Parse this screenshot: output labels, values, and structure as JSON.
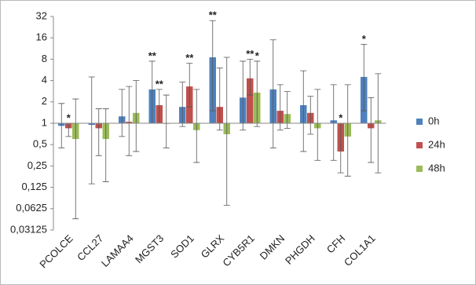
{
  "chart_data": {
    "type": "bar",
    "log_scale": true,
    "base_value": 1,
    "categories": [
      "PCOLCE",
      "CCL27",
      "LAMAA4",
      "MGST3",
      "SOD1",
      "GLRX",
      "CYB5R1",
      "DMKN",
      "PHGDH",
      "CFH",
      "COL1A1"
    ],
    "series": [
      {
        "name": "0h",
        "color": "#4f81bd",
        "values": [
          0.92,
          0.95,
          1.25,
          3,
          1.7,
          8.5,
          2.3,
          3,
          1.8,
          1.1,
          4.5
        ],
        "error_high": [
          1.9,
          4.5,
          3,
          7.5,
          3.8,
          28,
          7.5,
          15,
          5.5,
          3.5,
          13
        ],
        "error_low": [
          0.45,
          0.14,
          0.65,
          1,
          0.9,
          1.5,
          0.8,
          0.45,
          0.4,
          0.3,
          1.5
        ]
      },
      {
        "name": "24h",
        "color": "#c0504d",
        "values": [
          0.85,
          0.85,
          1.05,
          1.8,
          3.3,
          1.7,
          4.3,
          1.5,
          1.4,
          0.4,
          0.85
        ],
        "error_high": [
          1,
          1.6,
          3.3,
          3,
          7,
          6,
          8,
          3.5,
          2.4,
          1,
          2.3
        ],
        "error_low": [
          0.65,
          0.35,
          0.35,
          1,
          1.7,
          0.8,
          2.5,
          0.8,
          0.7,
          0.2,
          0.28
        ]
      },
      {
        "name": "48h",
        "color": "#9bbb59",
        "values": [
          0.6,
          0.6,
          1.4,
          0.98,
          0.8,
          0.7,
          2.7,
          1.35,
          0.85,
          0.65,
          1.1
        ],
        "error_high": [
          2.2,
          1.6,
          4,
          2.5,
          3,
          8.5,
          7.5,
          2.8,
          3,
          3.5,
          5
        ],
        "error_low": [
          0.045,
          0.15,
          0.4,
          0.45,
          0.28,
          0.07,
          0.9,
          0.85,
          0.3,
          0.18,
          0.2
        ]
      }
    ],
    "annotations": [
      {
        "text": "*",
        "category": "PCOLCE",
        "series": "24h"
      },
      {
        "text": "**",
        "category": "MGST3",
        "series": "0h"
      },
      {
        "text": "**",
        "category": "MGST3",
        "series": "24h"
      },
      {
        "text": "**",
        "category": "SOD1",
        "series": "24h"
      },
      {
        "text": "**",
        "category": "GLRX",
        "series": "0h"
      },
      {
        "text": "**",
        "category": "CYB5R1",
        "series": "24h"
      },
      {
        "text": "*",
        "category": "CYB5R1",
        "series": "48h"
      },
      {
        "text": "*",
        "category": "CFH",
        "series": "24h"
      },
      {
        "text": "*",
        "category": "COL1A1",
        "series": "0h"
      }
    ],
    "ylim": [
      0.03125,
      32
    ],
    "yticks": [
      {
        "value": 0.03125,
        "label": "0,03125"
      },
      {
        "value": 0.0625,
        "label": "0,0625"
      },
      {
        "value": 0.125,
        "label": "0,125"
      },
      {
        "value": 0.25,
        "label": "0,25"
      },
      {
        "value": 0.5,
        "label": "0,5"
      },
      1,
      2,
      4,
      8,
      16,
      32
    ],
    "legend_position": "right",
    "grid": false
  }
}
